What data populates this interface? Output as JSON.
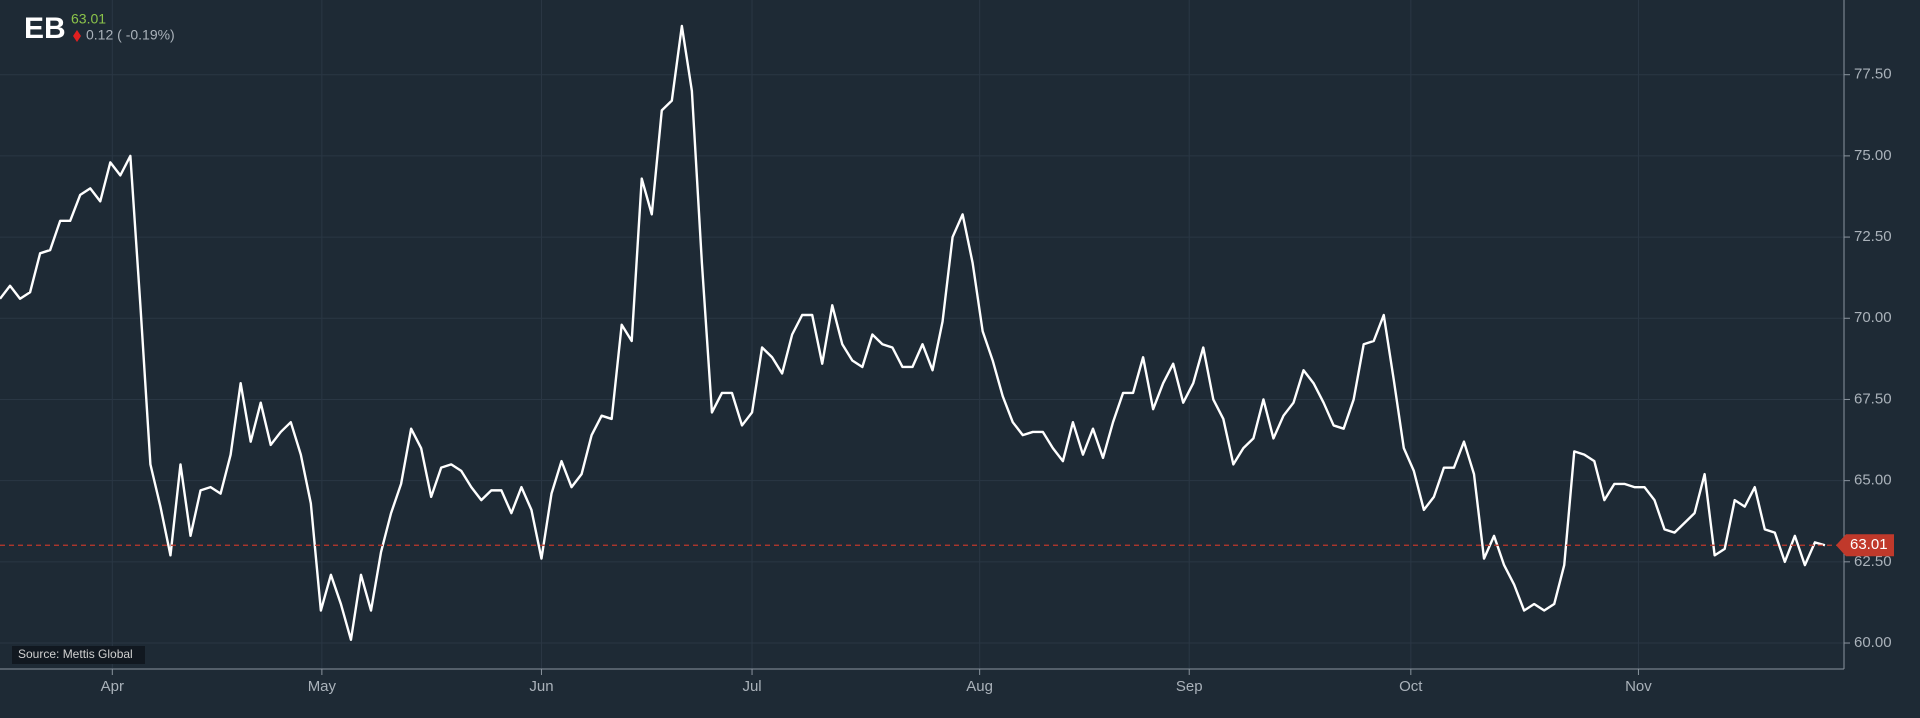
{
  "chart_data": {
    "type": "line",
    "symbol": "EB",
    "price": "63.01",
    "change": "0.12 ( -0.19%)",
    "source": "Source: Mettis Global",
    "color": "#ffffff",
    "grid": true,
    "ylim": [
      59.2,
      79.8
    ],
    "yticks": [
      {
        "value": 60,
        "label": "60.00"
      },
      {
        "value": 62.5,
        "label": "62.50"
      },
      {
        "value": 65,
        "label": "65.00"
      },
      {
        "value": 67.5,
        "label": "67.50"
      },
      {
        "value": 70,
        "label": "70.00"
      },
      {
        "value": 72.5,
        "label": "72.50"
      },
      {
        "value": 75,
        "label": "75.00"
      },
      {
        "value": 77.5,
        "label": "77.50"
      }
    ],
    "xlim": [
      0,
      183.9
    ],
    "xticks": [
      {
        "value": 11.2,
        "label": "Apr"
      },
      {
        "value": 32.1,
        "label": "May"
      },
      {
        "value": 54.0,
        "label": "Jun"
      },
      {
        "value": 75.0,
        "label": "Jul"
      },
      {
        "value": 97.7,
        "label": "Aug"
      },
      {
        "value": 118.6,
        "label": "Sep"
      },
      {
        "value": 140.7,
        "label": "Oct"
      },
      {
        "value": 163.4,
        "label": "Nov"
      }
    ],
    "last_value": 63.01,
    "values": [
      70.6,
      71.0,
      70.6,
      70.8,
      72.0,
      72.1,
      73.0,
      73.0,
      73.8,
      74.0,
      73.6,
      74.8,
      74.4,
      75.0,
      70.4,
      65.5,
      64.2,
      62.7,
      65.5,
      63.3,
      64.7,
      64.8,
      64.6,
      65.8,
      68.0,
      66.2,
      67.4,
      66.1,
      66.5,
      66.8,
      65.8,
      64.3,
      61.0,
      62.1,
      61.2,
      60.1,
      62.1,
      61.0,
      62.8,
      64.0,
      64.9,
      66.6,
      66.0,
      64.5,
      65.4,
      65.5,
      65.3,
      64.8,
      64.4,
      64.7,
      64.7,
      64.0,
      64.8,
      64.1,
      62.6,
      64.6,
      65.6,
      64.8,
      65.2,
      66.4,
      67.0,
      66.9,
      69.8,
      69.3,
      74.3,
      73.2,
      76.4,
      76.7,
      79.0,
      77.0,
      71.7,
      67.1,
      67.7,
      67.7,
      66.7,
      67.1,
      69.1,
      68.8,
      68.3,
      69.5,
      70.1,
      70.1,
      68.6,
      70.4,
      69.2,
      68.7,
      68.5,
      69.5,
      69.2,
      69.1,
      68.5,
      68.5,
      69.2,
      68.4,
      69.9,
      72.5,
      73.2,
      71.7,
      69.6,
      68.7,
      67.6,
      66.8,
      66.4,
      66.5,
      66.5,
      66.0,
      65.6,
      66.8,
      65.8,
      66.6,
      65.7,
      66.8,
      67.7,
      67.7,
      68.8,
      67.2,
      68.0,
      68.6,
      67.4,
      68.0,
      69.1,
      67.5,
      66.9,
      65.5,
      66.0,
      66.3,
      67.5,
      66.3,
      67.0,
      67.4,
      68.4,
      68.0,
      67.4,
      66.7,
      66.6,
      67.5,
      69.2,
      69.3,
      70.1,
      68.1,
      66.0,
      65.3,
      64.1,
      64.5,
      65.4,
      65.4,
      66.2,
      65.2,
      62.6,
      63.3,
      62.4,
      61.8,
      61.0,
      61.2,
      61.0,
      61.2,
      62.4,
      65.9,
      65.8,
      65.6,
      64.4,
      64.9,
      64.9,
      64.8,
      64.8,
      64.4,
      63.5,
      63.4,
      63.7,
      64.0,
      65.2,
      62.7,
      62.9,
      64.4,
      64.2,
      64.8,
      63.5,
      63.4,
      62.5,
      63.3,
      62.4,
      63.1,
      63.01
    ]
  }
}
